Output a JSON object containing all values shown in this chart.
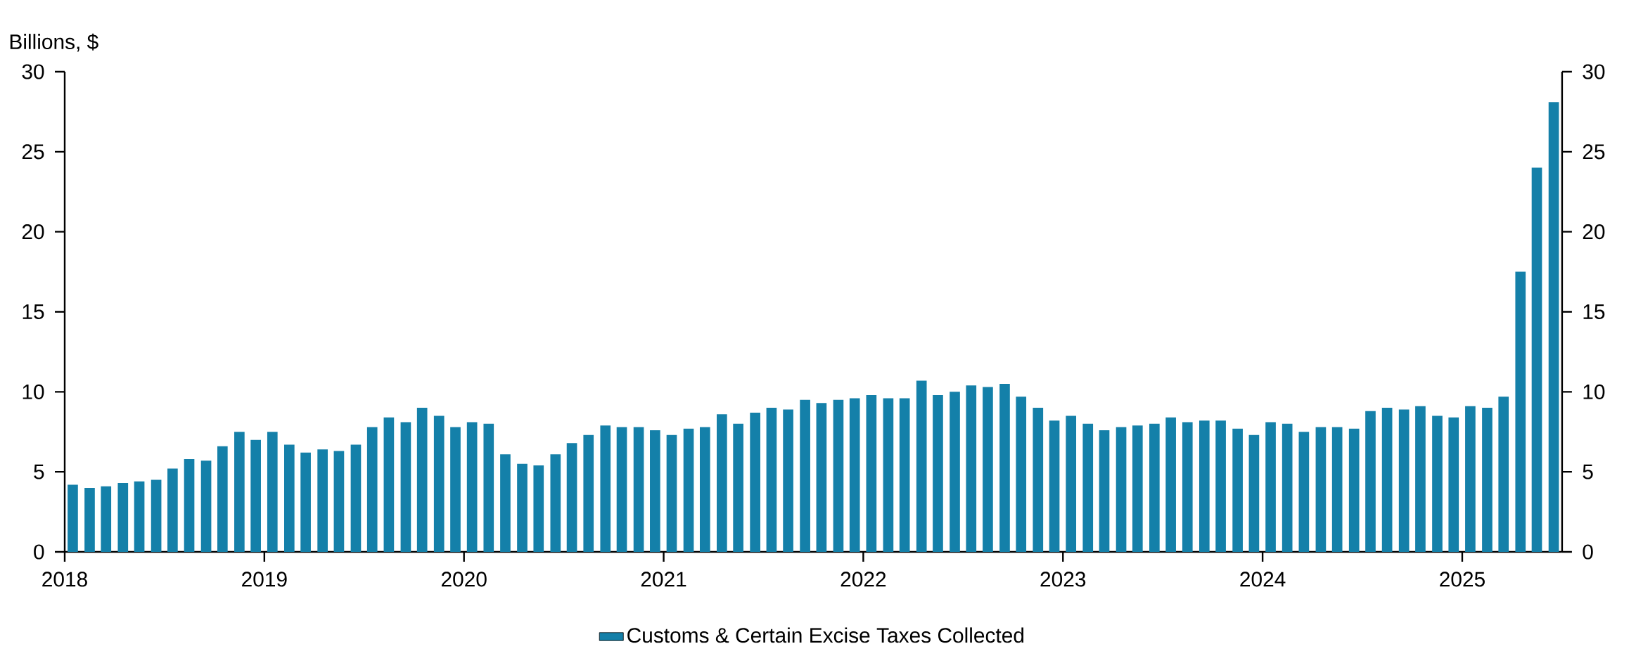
{
  "chart_data": {
    "type": "bar",
    "annotations": [
      "Billions, $"
    ],
    "x": [
      "2018-01-16",
      "2018-02-15",
      "2018-03-16",
      "2018-04-16",
      "2018-05-16",
      "2018-06-16",
      "2018-07-16",
      "2018-08-16",
      "2018-09-16",
      "2018-10-16",
      "2018-11-16",
      "2018-12-16",
      "2019-01-16",
      "2019-02-15",
      "2019-03-16",
      "2019-04-16",
      "2019-05-16",
      "2019-06-16",
      "2019-07-16",
      "2019-08-16",
      "2019-09-16",
      "2019-10-16",
      "2019-11-16",
      "2019-12-16",
      "2020-01-16",
      "2020-02-15",
      "2020-03-16",
      "2020-04-16",
      "2020-05-16",
      "2020-06-16",
      "2020-07-16",
      "2020-08-16",
      "2020-09-16",
      "2020-10-16",
      "2020-11-16",
      "2020-12-16",
      "2021-01-16",
      "2021-02-15",
      "2021-03-16",
      "2021-04-16",
      "2021-05-16",
      "2021-06-16",
      "2021-07-16",
      "2021-08-16",
      "2021-09-16",
      "2021-10-16",
      "2021-11-16",
      "2021-12-16",
      "2022-01-16",
      "2022-02-15",
      "2022-03-16",
      "2022-04-16",
      "2022-05-16",
      "2022-06-16",
      "2022-07-16",
      "2022-08-16",
      "2022-09-16",
      "2022-10-16",
      "2022-11-16",
      "2022-12-16",
      "2023-01-16",
      "2023-02-15",
      "2023-03-16",
      "2023-04-16",
      "2023-05-16",
      "2023-06-16",
      "2023-07-16",
      "2023-08-16",
      "2023-09-16",
      "2023-10-16",
      "2023-11-16",
      "2023-12-16",
      "2024-01-16",
      "2024-02-15",
      "2024-03-16",
      "2024-04-16",
      "2024-05-16",
      "2024-06-16",
      "2024-07-16",
      "2024-08-16",
      "2024-09-16",
      "2024-10-16",
      "2024-11-16",
      "2024-12-16",
      "2025-01-16",
      "2025-02-15",
      "2025-03-16",
      "2025-04-16",
      "2025-05-16",
      "2025-06-16"
    ],
    "series": [
      {
        "name": "Customs & Certain Excise Taxes Collected",
        "color": "#1480a9",
        "values": [
          4.2,
          4.0,
          4.1,
          4.3,
          4.4,
          4.5,
          5.2,
          5.8,
          5.7,
          6.6,
          7.5,
          7.0,
          7.5,
          6.7,
          6.2,
          6.4,
          6.3,
          6.7,
          7.8,
          8.4,
          8.1,
          9.0,
          8.5,
          7.8,
          8.1,
          8.0,
          6.1,
          5.5,
          5.4,
          6.1,
          6.8,
          7.3,
          7.9,
          7.8,
          7.8,
          7.6,
          7.3,
          7.7,
          7.8,
          8.6,
          8.0,
          8.7,
          9.0,
          8.9,
          9.5,
          9.3,
          9.5,
          9.6,
          9.8,
          9.6,
          9.6,
          10.7,
          9.8,
          10.0,
          10.4,
          10.3,
          10.5,
          9.7,
          9.0,
          8.2,
          8.5,
          8.0,
          7.6,
          7.8,
          7.9,
          8.0,
          8.4,
          8.1,
          8.2,
          8.2,
          7.7,
          7.3,
          8.1,
          8.0,
          7.5,
          7.8,
          7.8,
          7.7,
          8.8,
          9.0,
          8.9,
          9.1,
          8.5,
          8.4,
          9.1,
          9.0,
          9.7,
          17.5,
          24.0,
          28.1
        ]
      }
    ],
    "xlim": [
      "2018-01",
      "2025-07"
    ],
    "xticks": [
      "2018",
      "2019",
      "2020",
      "2021",
      "2022",
      "2023",
      "2024",
      "2025"
    ],
    "ylim": [
      0,
      30
    ],
    "yticks": [
      0,
      5,
      10,
      15,
      20,
      25,
      30
    ],
    "y2lim": [
      0,
      30
    ],
    "y2ticks": [
      0,
      5,
      10,
      15,
      20,
      25,
      30
    ],
    "legend": "bottom"
  }
}
